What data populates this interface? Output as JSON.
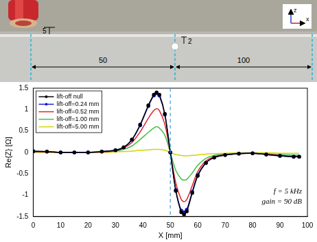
{
  "chart_data": {
    "type": "line",
    "x_label": "X [mm]",
    "y_label": "Re{Z} [Ω]",
    "xlim": [
      0,
      100
    ],
    "xticks": [
      0,
      10,
      20,
      30,
      40,
      50,
      60,
      70,
      80,
      90,
      100
    ],
    "ylim": [
      -1.5,
      1.5
    ],
    "yticks": [
      -1.5,
      -1,
      -0.5,
      0,
      0.5,
      1,
      1.5
    ],
    "grid": false,
    "legend": "upper left",
    "reference_x": 50,
    "annotations": [
      "f = 5 kHz",
      "gain = 90 dB"
    ],
    "x": [
      0,
      5,
      10,
      15,
      20,
      25,
      30,
      33,
      36,
      39,
      42,
      44,
      45,
      46,
      48,
      50,
      52,
      54,
      55,
      56,
      58,
      60,
      63,
      66,
      70,
      75,
      80,
      85,
      90,
      95,
      97
    ],
    "series": [
      {
        "name": "lift-off null",
        "color": "#000000",
        "marker": "circle",
        "line_style": "solid",
        "values": [
          0.03,
          0.02,
          0.0,
          0.0,
          0.0,
          0.02,
          0.05,
          0.12,
          0.3,
          0.65,
          1.1,
          1.35,
          1.4,
          1.35,
          0.9,
          0.0,
          -0.9,
          -1.4,
          -1.45,
          -1.38,
          -0.95,
          -0.55,
          -0.25,
          -0.12,
          -0.06,
          -0.03,
          -0.02,
          -0.05,
          -0.08,
          -0.1,
          -0.1
        ]
      },
      {
        "name": "lift-off=0.24 mm",
        "color": "#1f1fd0",
        "marker": "circle",
        "line_style": "solid",
        "values": [
          0.02,
          0.02,
          0.0,
          0.0,
          0.0,
          0.02,
          0.05,
          0.12,
          0.29,
          0.63,
          1.08,
          1.33,
          1.38,
          1.33,
          0.88,
          0.0,
          -0.88,
          -1.36,
          -1.4,
          -1.34,
          -0.92,
          -0.53,
          -0.24,
          -0.12,
          -0.06,
          -0.03,
          -0.02,
          -0.05,
          -0.08,
          -0.1,
          -0.1
        ]
      },
      {
        "name": "lift-off=0.52 mm",
        "color": "#e02020",
        "marker": "none",
        "line_style": "solid",
        "values": [
          0.02,
          0.01,
          0.0,
          0.0,
          0.0,
          0.01,
          0.04,
          0.1,
          0.23,
          0.48,
          0.8,
          0.98,
          1.02,
          0.98,
          0.66,
          0.0,
          -0.72,
          -1.1,
          -1.15,
          -1.1,
          -0.78,
          -0.45,
          -0.2,
          -0.1,
          -0.05,
          -0.03,
          -0.02,
          -0.04,
          -0.07,
          -0.09,
          -0.09
        ]
      },
      {
        "name": "lift-off=1.00 mm",
        "color": "#40c040",
        "marker": "none",
        "line_style": "solid",
        "values": [
          0.01,
          0.01,
          0.0,
          0.0,
          0.0,
          0.01,
          0.03,
          0.07,
          0.15,
          0.3,
          0.47,
          0.57,
          0.6,
          0.57,
          0.4,
          0.0,
          -0.42,
          -0.62,
          -0.65,
          -0.63,
          -0.48,
          -0.3,
          -0.14,
          -0.07,
          -0.04,
          -0.02,
          -0.02,
          -0.03,
          -0.05,
          -0.06,
          -0.06
        ]
      },
      {
        "name": "lift-off=5.00 mm",
        "color": "#d4d400",
        "marker": "none",
        "line_style": "solid",
        "values": [
          0.0,
          0.0,
          0.0,
          0.0,
          0.0,
          0.0,
          0.01,
          0.02,
          0.03,
          0.05,
          0.06,
          0.07,
          0.07,
          0.07,
          0.05,
          0.0,
          -0.05,
          -0.07,
          -0.08,
          -0.08,
          -0.07,
          -0.06,
          -0.04,
          -0.03,
          -0.02,
          -0.01,
          -0.01,
          -0.01,
          -0.02,
          -0.02,
          -0.02
        ]
      }
    ]
  },
  "photo": {
    "probe_gap": 5,
    "defect_size": 2,
    "defect_position": 50,
    "specimen_length": 100,
    "axis_labels": [
      "z",
      "x"
    ]
  }
}
